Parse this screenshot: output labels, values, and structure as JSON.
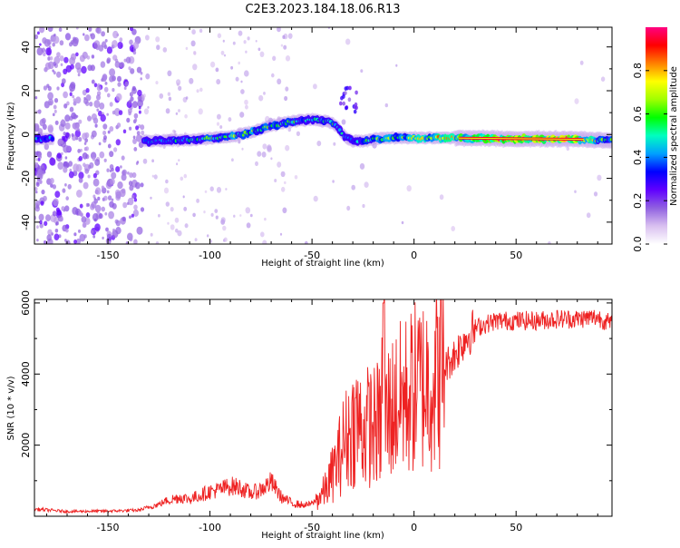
{
  "figure": {
    "title": "C2E3.2023.184.18.06.R13"
  },
  "chart_data": [
    {
      "type": "heatmap",
      "title": "",
      "xlabel": "Height of straight line (km)",
      "ylabel": "Frequency (Hz)",
      "xlim": [
        -186,
        97
      ],
      "ylim": [
        -50,
        49
      ],
      "x_ticks": [
        -150,
        -100,
        -50,
        0,
        50
      ],
      "x_tick_labels": [
        "-150",
        "-100",
        "-50",
        "0",
        "50"
      ],
      "y_ticks": [
        -40,
        -20,
        0,
        20,
        40
      ],
      "y_tick_labels": [
        "-40",
        "-20",
        "0",
        "20",
        "40"
      ],
      "grid": false,
      "description_of_signal": "narrow carrier line near 0 Hz; strong scatter for heights below about -130 km",
      "ridge": {
        "x": [
          -186,
          -160,
          -140,
          -130,
          -110,
          -90,
          -80,
          -70,
          -60,
          -50,
          -42,
          -38,
          -34,
          -30,
          -25,
          -20,
          -10,
          0,
          10,
          20,
          30,
          40,
          50,
          60,
          70,
          80,
          90,
          97
        ],
        "freq": [
          -2,
          -2,
          -2,
          -3,
          -2.5,
          -1,
          1,
          4,
          6,
          7,
          6,
          4,
          -1,
          -3,
          -3,
          -2,
          -1.5,
          -1.5,
          -1.5,
          -1.5,
          -1.7,
          -1.8,
          -2,
          -2,
          -2,
          -2,
          -2.5,
          -2.5
        ],
        "amplitude": [
          0.3,
          0.35,
          0.4,
          0.35,
          0.45,
          0.5,
          0.55,
          0.5,
          0.45,
          0.45,
          0.4,
          0.45,
          0.35,
          0.3,
          0.4,
          0.5,
          0.55,
          0.6,
          0.65,
          0.7,
          0.8,
          0.85,
          0.9,
          0.95,
          0.95,
          0.95,
          0.5,
          0.5
        ]
      },
      "colorbar": {
        "label": "Normalized spectral amplitude",
        "range": [
          0,
          1
        ],
        "ticks": [
          0,
          0.2,
          0.4,
          0.6,
          0.8
        ],
        "tick_labels": [
          "0.0",
          "0.2",
          "0.4",
          "0.6",
          "0.8"
        ],
        "colors": [
          "#ffffff",
          "#d9c0f0",
          "#9060e0",
          "#6000ff",
          "#0000ff",
          "#00a0ff",
          "#00ffc0",
          "#00ff00",
          "#a0ff00",
          "#ffff00",
          "#ff8000",
          "#ff0000",
          "#ff0080"
        ]
      }
    },
    {
      "type": "line",
      "title": "",
      "xlabel": "Height of straight line (km)",
      "ylabel": "SNR (10 * v/v)",
      "xlim": [
        -186,
        97
      ],
      "ylim": [
        0,
        6100
      ],
      "x_ticks": [
        -150,
        -100,
        -50,
        0,
        50
      ],
      "x_tick_labels": [
        "-150",
        "-100",
        "-50",
        "0",
        "50"
      ],
      "y_ticks": [
        2000,
        4000,
        6000
      ],
      "y_tick_labels": [
        "2000",
        "4000",
        "6000"
      ],
      "grid": false,
      "series": [
        {
          "color": "#ee2222",
          "x": [
            -186,
            -170,
            -150,
            -135,
            -125,
            -120,
            -115,
            -110,
            -105,
            -100,
            -95,
            -90,
            -85,
            -80,
            -75,
            -70,
            -65,
            -60,
            -55,
            -50,
            -47,
            -44,
            -42,
            -40,
            -37,
            -35,
            -33,
            -30,
            -28,
            -26,
            -24,
            -22,
            -20,
            -18,
            -16,
            -15,
            -14,
            -13,
            -12,
            -10,
            -8,
            -5,
            -2,
            0,
            5,
            10,
            15,
            20,
            25,
            30,
            35,
            40,
            50,
            60,
            70,
            80,
            90,
            97
          ],
          "values": [
            180,
            120,
            130,
            150,
            300,
            420,
            500,
            450,
            550,
            650,
            700,
            800,
            750,
            600,
            700,
            900,
            500,
            350,
            300,
            350,
            500,
            700,
            900,
            1200,
            1600,
            2000,
            2200,
            2500,
            2700,
            2500,
            2400,
            2600,
            2500,
            2600,
            2500,
            6000,
            2700,
            2900,
            3000,
            3100,
            3200,
            3350,
            3450,
            3600,
            3750,
            3900,
            4200,
            4550,
            5000,
            5300,
            5400,
            5500,
            5500,
            5500,
            5550,
            5550,
            5600,
            5400
          ]
        }
      ]
    }
  ]
}
